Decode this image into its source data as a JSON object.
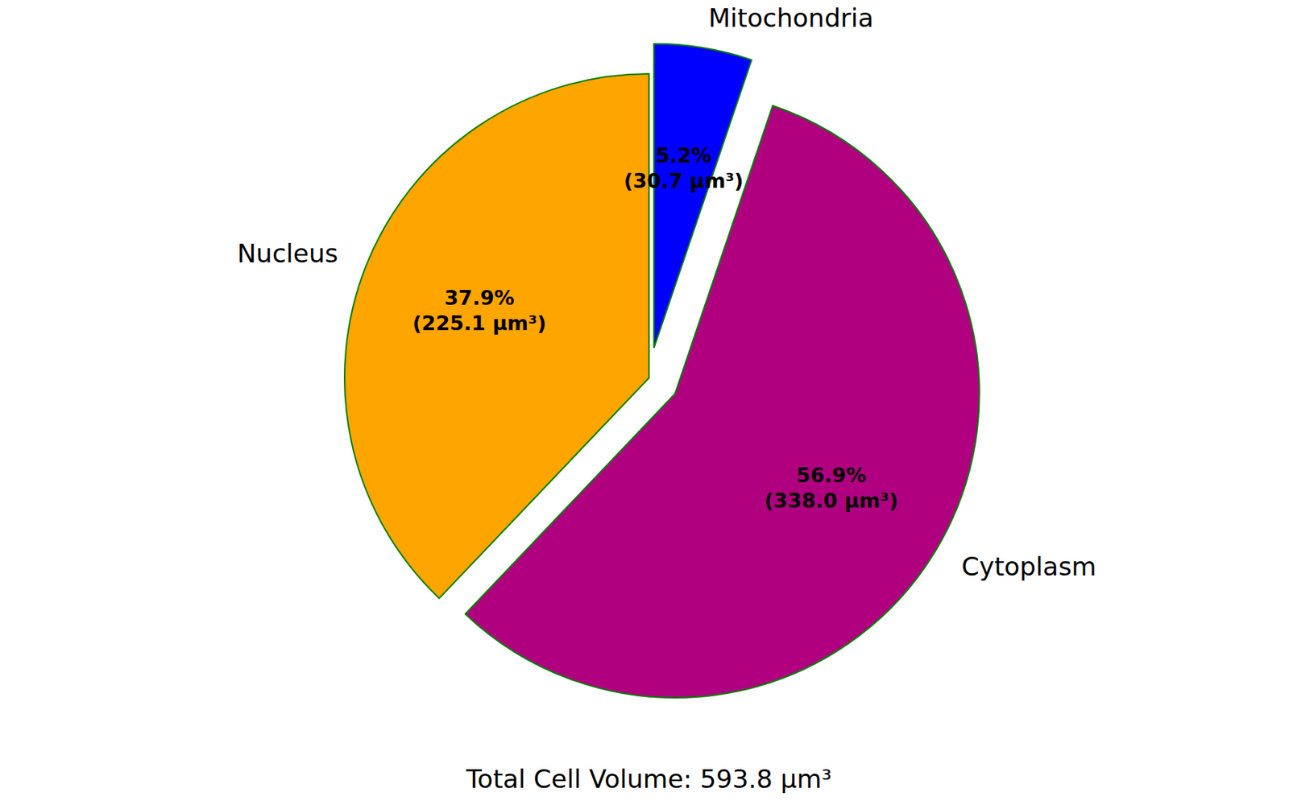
{
  "chart_data": {
    "type": "pie",
    "categories": [
      "Nucleus",
      "Cytoplasm",
      "Mitochondria"
    ],
    "values": [
      37.9,
      56.9,
      5.2
    ],
    "value_labels": [
      "37.9%",
      "56.9%",
      "5.2%"
    ],
    "volumes": [
      225.1,
      338.0,
      30.7
    ],
    "volume_labels": [
      "(225.1 µm³)",
      "(338.0 µm³)",
      "(30.7 µm³)"
    ],
    "colors": [
      "#ffa500",
      "#b00080",
      "#0000ff"
    ],
    "data_labels": true,
    "footer": "Total Cell Volume: 593.8 µm³"
  }
}
